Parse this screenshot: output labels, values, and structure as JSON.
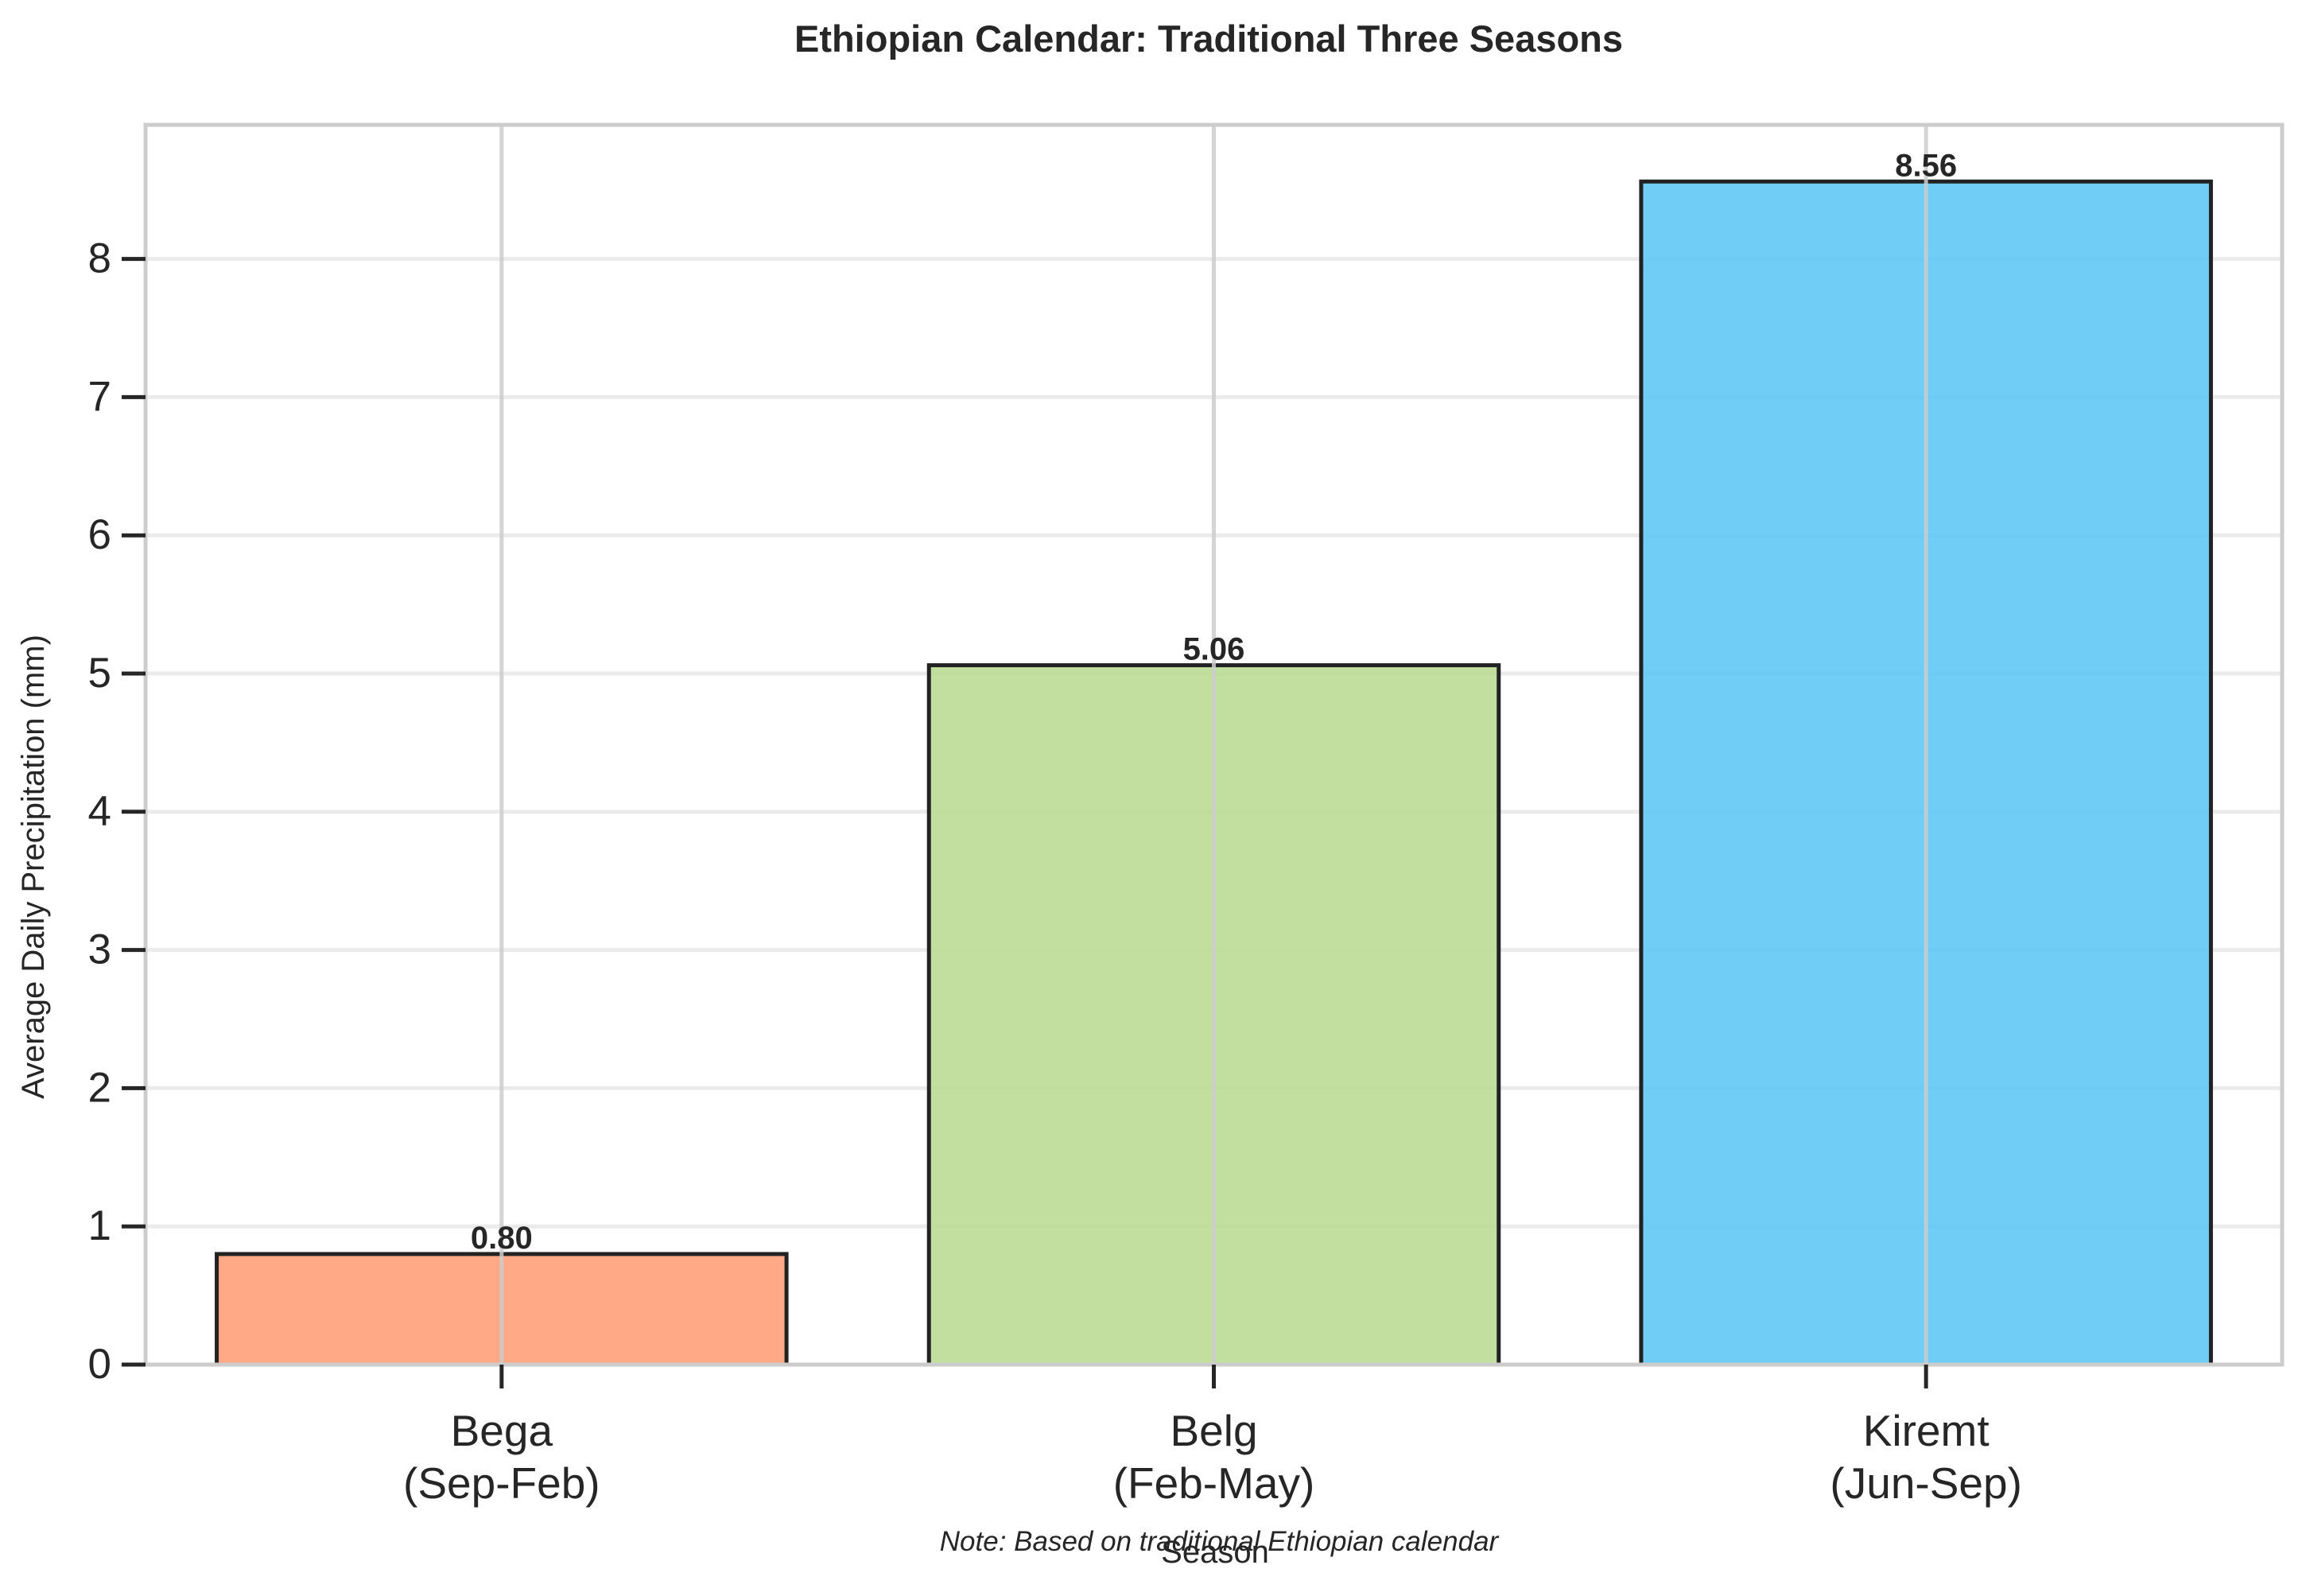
{
  "chart_data": {
    "type": "bar",
    "title": "Ethiopian Calendar: Traditional Three Seasons",
    "xlabel": "Season",
    "ylabel": "Average Daily Precipitation (mm)",
    "categories": [
      [
        "Bega",
        "(Sep-Feb)"
      ],
      [
        "Belg",
        "(Feb-May)"
      ],
      [
        "Kiremt",
        "(Jun-Sep)"
      ]
    ],
    "values": [
      0.8,
      5.06,
      8.56
    ],
    "value_labels": [
      "0.80",
      "5.06",
      "8.56"
    ],
    "bar_colors": [
      "#FFA07A",
      "#BCDB95",
      "#5FC8F5"
    ],
    "bar_edge_color": "#222222",
    "ylim": [
      0,
      8.97
    ],
    "yticks": [
      0,
      1,
      2,
      3,
      4,
      5,
      6,
      7,
      8
    ],
    "grid": true,
    "legend": "none",
    "note": "Note: Based on traditional Ethiopian calendar"
  }
}
